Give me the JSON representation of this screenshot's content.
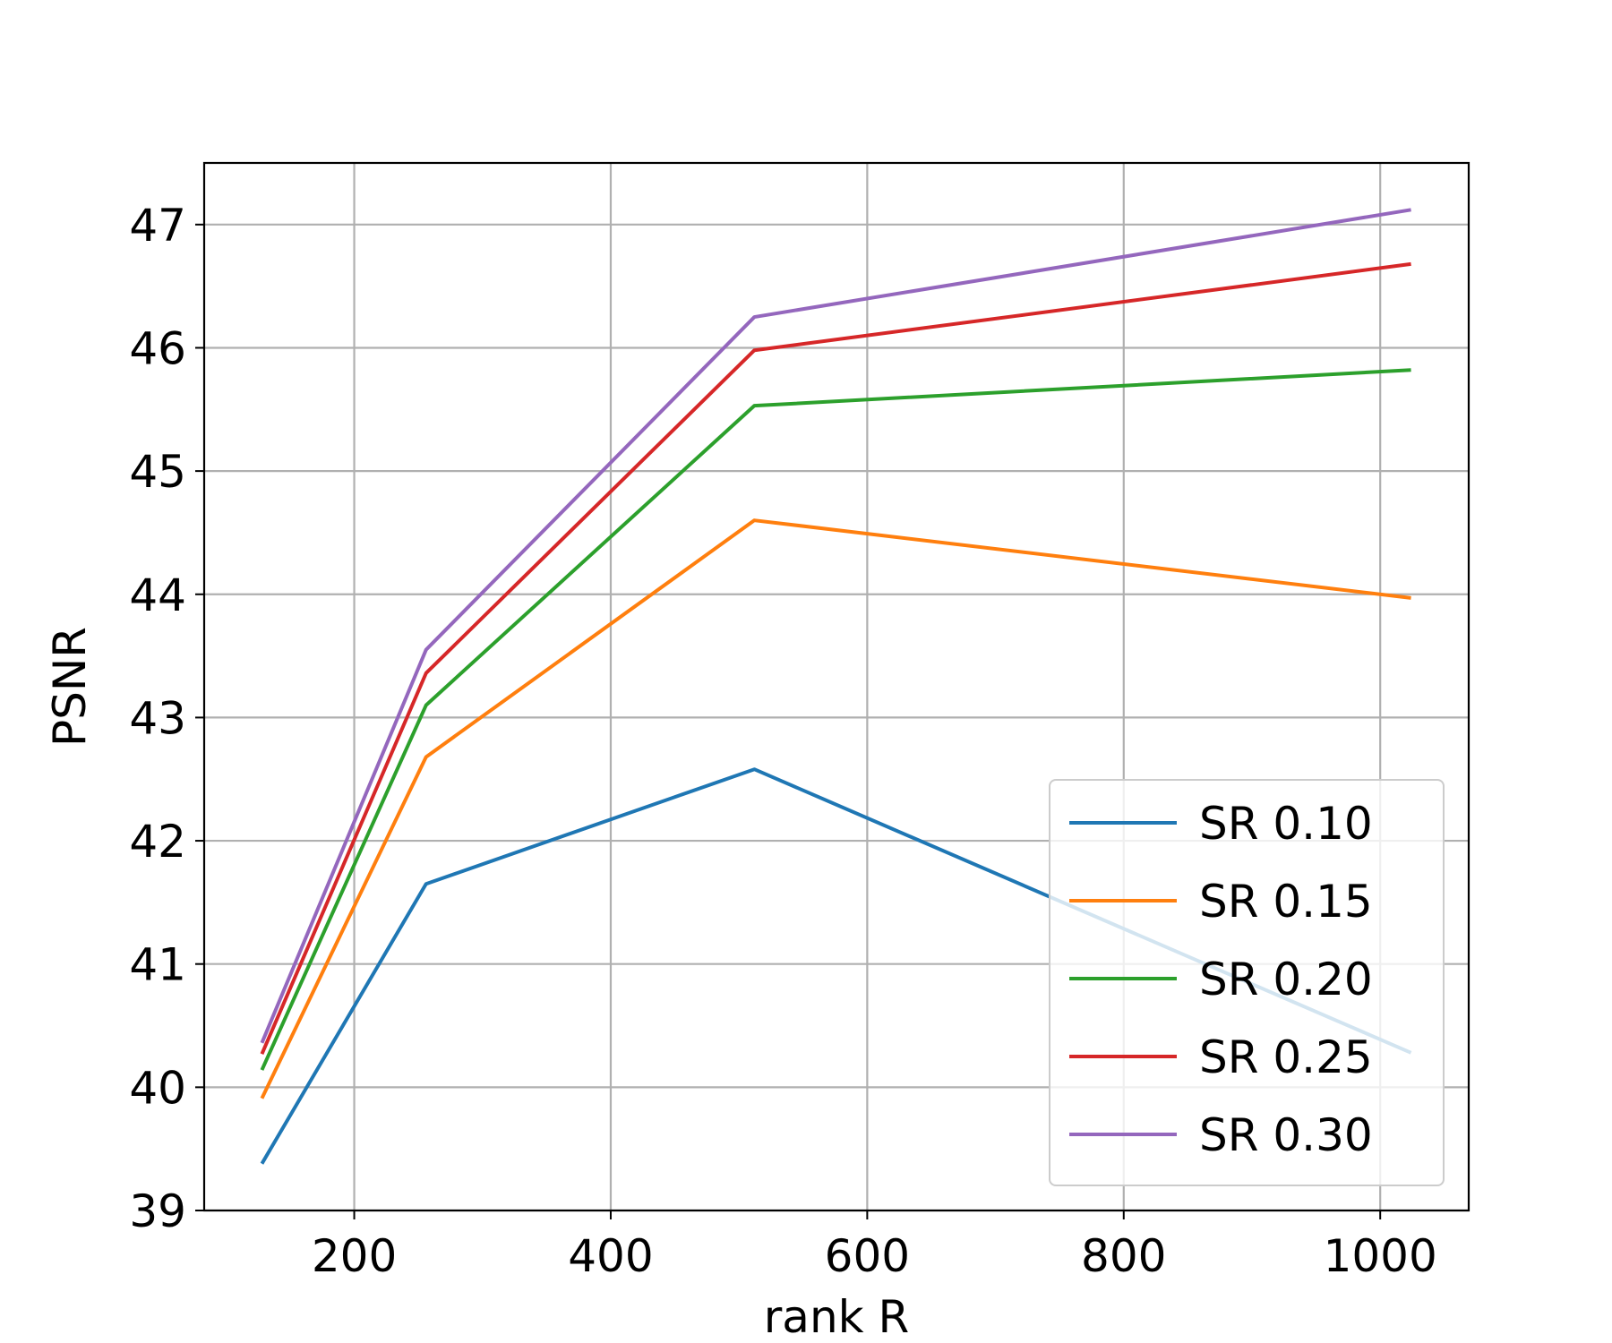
{
  "chart_data": {
    "type": "line",
    "xlabel": "rank R",
    "ylabel": "PSNR",
    "xlim": [
      83,
      1069
    ],
    "ylim": [
      39,
      47.5
    ],
    "xticks": [
      200,
      400,
      600,
      800,
      1000
    ],
    "yticks": [
      39,
      40,
      41,
      42,
      43,
      44,
      45,
      46,
      47
    ],
    "grid": true,
    "legend_position": "lower-right",
    "x": [
      128,
      256,
      512,
      1024
    ],
    "series": [
      {
        "name": "SR 0.10",
        "color": "#1f77b4",
        "values": [
          39.38,
          41.65,
          42.58,
          40.28
        ]
      },
      {
        "name": "SR 0.15",
        "color": "#ff7f0e",
        "values": [
          39.91,
          42.68,
          44.6,
          43.97
        ]
      },
      {
        "name": "SR 0.20",
        "color": "#2ca02c",
        "values": [
          40.14,
          43.1,
          45.53,
          45.82
        ]
      },
      {
        "name": "SR 0.25",
        "color": "#d62728",
        "values": [
          40.27,
          43.36,
          45.98,
          46.68
        ]
      },
      {
        "name": "SR 0.30",
        "color": "#9467bd",
        "values": [
          40.36,
          43.55,
          46.25,
          47.12
        ]
      }
    ]
  }
}
